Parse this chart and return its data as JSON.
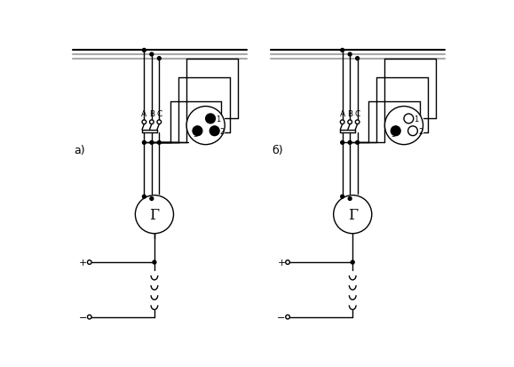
{
  "bg_color": "#ffffff",
  "line_color": "#000000",
  "gray_color": "#aaaaaa",
  "fig_width": 5.79,
  "fig_height": 4.14,
  "label_a": "а)",
  "label_b": "б)",
  "generator_label": "Г",
  "lamp_inner_r": 7,
  "lamp_outer_r": 28,
  "gen_r": 28,
  "lw": 1.0,
  "lw_bus": 1.5
}
